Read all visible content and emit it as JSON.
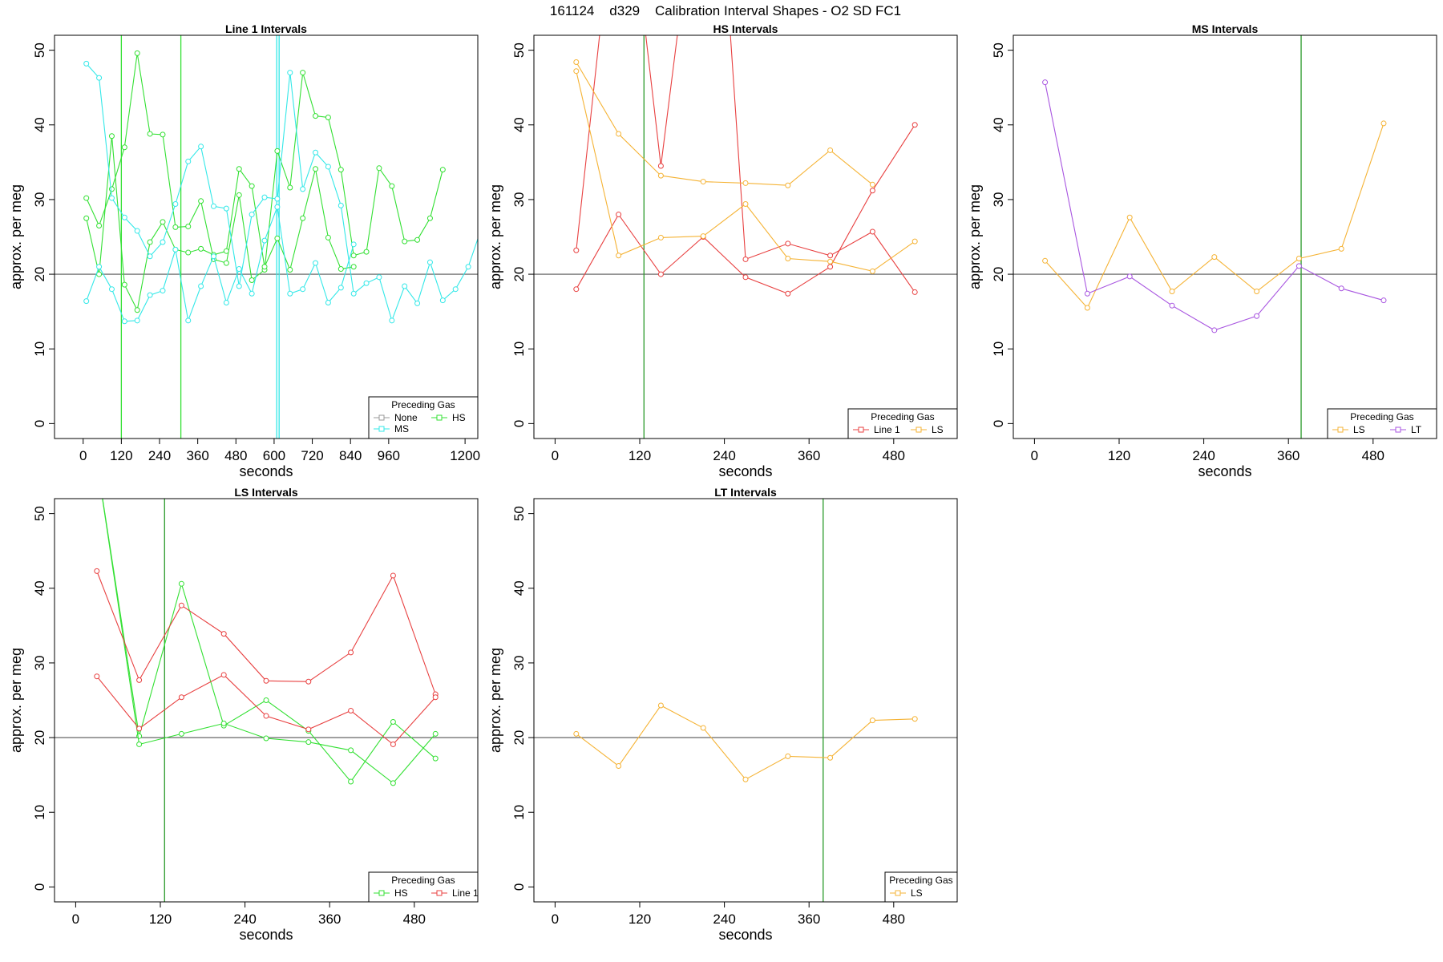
{
  "figure": {
    "title": "161124    d329    Calibration Interval Shapes - O2 SD FC1",
    "colors": {
      "None": "#999999",
      "HS": "#33e033",
      "MS": "#33e8e8",
      "Line 1": "#e84040",
      "LS": "#f5b335",
      "LT": "#a855e0",
      "reference": "#555555",
      "marker_line": "#2a9a2a"
    }
  },
  "chart_data": [
    {
      "type": "line",
      "title": "Line 1 Intervals",
      "xlabel": "seconds",
      "ylabel": "approx. per meg",
      "xlim": [
        -90,
        1240
      ],
      "ylim": [
        -2,
        52
      ],
      "x_ticks": [
        0,
        120,
        240,
        360,
        480,
        600,
        720,
        840,
        960,
        1200
      ],
      "y_ticks": [
        0,
        10,
        20,
        30,
        40,
        50
      ],
      "hline": 20,
      "vlines": [
        {
          "x": 120,
          "series": "HS"
        },
        {
          "x": 307,
          "series": "HS"
        },
        {
          "x": 612,
          "series": "MS"
        }
      ],
      "legend": {
        "title": "Preceding Gas",
        "position": "bottom-right",
        "columns": 2,
        "entries": [
          "None",
          "HS",
          "MS"
        ]
      },
      "series": [
        {
          "name": "HS",
          "x": [
            10,
            50,
            90,
            130,
            170,
            210,
            250,
            290,
            330,
            370,
            410,
            450,
            490,
            530,
            570,
            610,
            650,
            690,
            730,
            770,
            810,
            850,
            890,
            930,
            970,
            1010,
            1050,
            1090,
            1130
          ],
          "y": [
            30.2,
            26.5,
            31.4,
            37,
            49.6,
            38.8,
            38.7,
            26.3,
            26.4,
            29.8,
            22,
            21.5,
            30.6,
            19.2,
            20.6,
            36.5,
            31.6,
            47,
            41.2,
            41,
            34,
            22.5,
            23,
            34.2,
            31.8,
            24.4,
            24.6,
            27.5,
            34
          ]
        },
        {
          "name": "HS",
          "x": [
            10,
            50,
            90,
            130,
            170,
            210,
            250,
            290,
            330,
            370,
            410,
            450,
            490,
            530,
            570,
            610,
            650,
            690,
            730,
            770,
            810,
            850
          ],
          "y": [
            27.5,
            20,
            38.5,
            18.6,
            15.2,
            24.3,
            27,
            23.3,
            22.9,
            23.4,
            22.6,
            23.1,
            34.1,
            31.8,
            21,
            24.8,
            20.6,
            27.5,
            34.1,
            24.9,
            20.7,
            21
          ]
        },
        {
          "name": "MS",
          "x": [
            10,
            50,
            90,
            130,
            170,
            210,
            250,
            290,
            330,
            370,
            410,
            450,
            490,
            530,
            570,
            610,
            650,
            690,
            730,
            770,
            810,
            850,
            890,
            930,
            970,
            1010,
            1050,
            1090,
            1130,
            1170,
            1210,
            1250
          ],
          "y": [
            48.2,
            46.3,
            30.2,
            27.6,
            25.8,
            22.4,
            24.3,
            29.4,
            35.1,
            37.1,
            29.1,
            28.8,
            18.4,
            28,
            30.3,
            30.1,
            47,
            31.4,
            36.3,
            34.4,
            29.2,
            17.4,
            18.8,
            19.6,
            13.8,
            18.4,
            16.1,
            21.6,
            16.5,
            18,
            21,
            26
          ]
        },
        {
          "name": "MS",
          "x": [
            10,
            50,
            90,
            130,
            170,
            210,
            250,
            290,
            330,
            370,
            410,
            450,
            490,
            530,
            570,
            610,
            650,
            690,
            730,
            770,
            810,
            850
          ],
          "y": [
            16.4,
            21,
            18,
            13.7,
            13.8,
            17.2,
            17.8,
            23.3,
            13.8,
            18.4,
            22.4,
            16.2,
            20.7,
            17.4,
            24.5,
            29,
            17.4,
            18,
            21.5,
            16.2,
            18.2,
            24
          ]
        }
      ]
    },
    {
      "type": "line",
      "title": "HS Intervals",
      "xlabel": "seconds",
      "ylabel": "approx. per meg",
      "xlim": [
        -30,
        570
      ],
      "ylim": [
        -2,
        52
      ],
      "x_ticks": [
        0,
        120,
        240,
        360,
        480
      ],
      "y_ticks": [
        0,
        10,
        20,
        30,
        40,
        50
      ],
      "hline": 20,
      "vlines": [
        {
          "x": 126,
          "series": "HS"
        }
      ],
      "legend": {
        "title": "Preceding Gas",
        "position": "bottom-right",
        "columns": 2,
        "entries": [
          "Line 1",
          "LS"
        ]
      },
      "series": [
        {
          "name": "Line 1",
          "x": [
            30,
            90,
            150,
            210,
            270,
            330,
            390,
            450,
            510
          ],
          "y": [
            18,
            28,
            20,
            25,
            19.6,
            17.4,
            21,
            31.2,
            40
          ]
        },
        {
          "name": "Line 1",
          "x": [
            30,
            70,
            120,
            150,
            180,
            245,
            270,
            330,
            390,
            450,
            510
          ],
          "y": [
            23.2,
            58,
            59,
            34.5,
            57,
            57,
            22,
            24.1,
            22.5,
            25.7,
            17.6
          ]
        },
        {
          "name": "LS",
          "x": [
            30,
            90,
            150,
            210,
            270,
            330,
            390,
            450
          ],
          "y": [
            48.4,
            38.8,
            33.2,
            32.4,
            32.2,
            31.9,
            36.6,
            32
          ]
        },
        {
          "name": "LS",
          "x": [
            30,
            90,
            150,
            210,
            270,
            330,
            390,
            450,
            510
          ],
          "y": [
            47.2,
            22.5,
            24.9,
            25.1,
            29.4,
            22.1,
            21.7,
            20.4,
            24.4
          ]
        }
      ]
    },
    {
      "type": "line",
      "title": "MS Intervals",
      "xlabel": "seconds",
      "ylabel": "approx. per meg",
      "xlim": [
        -30,
        570
      ],
      "ylim": [
        -2,
        52
      ],
      "x_ticks": [
        0,
        120,
        240,
        360,
        480
      ],
      "y_ticks": [
        0,
        10,
        20,
        30,
        40,
        50
      ],
      "hline": 20,
      "vlines": [
        {
          "x": 378,
          "series": "HS"
        }
      ],
      "legend": {
        "title": "Preceding Gas",
        "position": "bottom-right",
        "columns": 2,
        "entries": [
          "LS",
          "LT"
        ]
      },
      "series": [
        {
          "name": "LS",
          "x": [
            15,
            75,
            135,
            195,
            255,
            315,
            375,
            435,
            495
          ],
          "y": [
            21.8,
            15.5,
            27.6,
            17.7,
            22.3,
            17.7,
            22.1,
            23.4,
            40.2
          ]
        },
        {
          "name": "LT",
          "x": [
            15,
            75,
            135,
            195,
            255,
            315,
            375,
            435,
            495
          ],
          "y": [
            45.7,
            17.4,
            19.7,
            15.8,
            12.5,
            14.4,
            21.1,
            18.1,
            16.5
          ]
        }
      ]
    },
    {
      "type": "line",
      "title": "LS Intervals",
      "xlabel": "seconds",
      "ylabel": "approx. per meg",
      "xlim": [
        -30,
        570
      ],
      "ylim": [
        -2,
        52
      ],
      "x_ticks": [
        0,
        120,
        240,
        360,
        480
      ],
      "y_ticks": [
        0,
        10,
        20,
        30,
        40,
        50
      ],
      "hline": 20,
      "vlines": [
        {
          "x": 126,
          "series": "HS"
        }
      ],
      "legend": {
        "title": "Preceding Gas",
        "position": "bottom-right",
        "columns": 2,
        "entries": [
          "HS",
          "Line 1"
        ]
      },
      "series": [
        {
          "name": "HS",
          "x": [
            30,
            90,
            150,
            210,
            270,
            330,
            390,
            450,
            510
          ],
          "y": [
            57,
            20.2,
            40.6,
            21.6,
            25,
            20.9,
            14.1,
            22.1,
            17.2
          ]
        },
        {
          "name": "HS",
          "x": [
            30,
            90,
            150,
            210,
            270,
            330,
            390,
            450,
            510
          ],
          "y": [
            57,
            19.1,
            20.5,
            21.9,
            19.9,
            19.4,
            18.3,
            13.9,
            20.5
          ]
        },
        {
          "name": "Line 1",
          "x": [
            30,
            90,
            150,
            210,
            270,
            330,
            390,
            450,
            510
          ],
          "y": [
            42.3,
            27.7,
            37.7,
            33.9,
            27.6,
            27.5,
            31.4,
            41.7,
            25.8
          ]
        },
        {
          "name": "Line 1",
          "x": [
            30,
            90,
            150,
            210,
            270,
            330,
            390,
            450,
            510
          ],
          "y": [
            28.2,
            21.2,
            25.4,
            28.4,
            22.9,
            21.1,
            23.6,
            19.1,
            25.4
          ]
        }
      ]
    },
    {
      "type": "line",
      "title": "LT Intervals",
      "xlabel": "seconds",
      "ylabel": "approx. per meg",
      "xlim": [
        -30,
        570
      ],
      "ylim": [
        -2,
        52
      ],
      "x_ticks": [
        0,
        120,
        240,
        360,
        480
      ],
      "y_ticks": [
        0,
        10,
        20,
        30,
        40,
        50
      ],
      "hline": 20,
      "vlines": [
        {
          "x": 380,
          "series": "HS"
        }
      ],
      "legend": {
        "title": "Preceding Gas",
        "position": "bottom-right",
        "columns": 1,
        "entries": [
          "LS"
        ]
      },
      "series": [
        {
          "name": "LS",
          "x": [
            30,
            90,
            150,
            210,
            270,
            330,
            390,
            450,
            510
          ],
          "y": [
            20.5,
            16.2,
            24.3,
            21.3,
            14.4,
            17.5,
            17.3,
            22.3,
            22.5
          ]
        }
      ]
    }
  ]
}
